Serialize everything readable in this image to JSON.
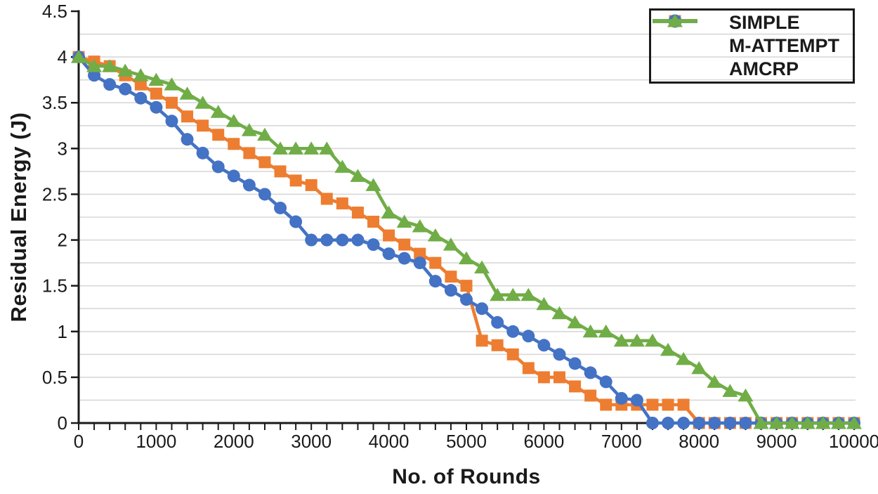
{
  "chart_data": {
    "type": "line",
    "title": "",
    "xlabel": "No. of Rounds",
    "ylabel": "Residual Energy (J)",
    "xlim": [
      0,
      10000
    ],
    "ylim": [
      0,
      4.5
    ],
    "x_major_tick_step": 1000,
    "x_minor_tick_step": 200,
    "y_major_tick_step": 0.5,
    "y_gridline_step": 0.25,
    "grid": "horizontal",
    "legend_position": "top-right",
    "x_tick_labels": [
      "0",
      "1000",
      "2000",
      "3000",
      "4000",
      "5000",
      "6000",
      "7000",
      "8000",
      "9000",
      "10000"
    ],
    "y_tick_labels": [
      "0",
      "0.5",
      "1",
      "1.5",
      "2",
      "2.5",
      "3",
      "3.5",
      "4",
      "4.5"
    ],
    "axis_color": "#1a1a1a",
    "gridline_color": "#d8d8d8",
    "text_color": "#1a1a1a",
    "x": [
      0,
      200,
      400,
      600,
      800,
      1000,
      1200,
      1400,
      1600,
      1800,
      2000,
      2200,
      2400,
      2600,
      2800,
      3000,
      3200,
      3400,
      3600,
      3800,
      4000,
      4200,
      4400,
      4600,
      4800,
      5000,
      5200,
      5400,
      5600,
      5800,
      6000,
      6200,
      6400,
      6600,
      6800,
      7000,
      7200,
      7400,
      7600,
      7800,
      8000,
      8200,
      8400,
      8600,
      8800,
      9000,
      9200,
      9400,
      9600,
      9800,
      10000
    ],
    "series": [
      {
        "name": "SIMPLE",
        "color": "#ED7D31",
        "marker": "square",
        "values": [
          4,
          3.95,
          3.9,
          3.8,
          3.7,
          3.6,
          3.5,
          3.35,
          3.25,
          3.15,
          3.05,
          2.95,
          2.85,
          2.75,
          2.65,
          2.6,
          2.45,
          2.4,
          2.3,
          2.2,
          2.05,
          1.95,
          1.85,
          1.75,
          1.6,
          1.5,
          0.9,
          0.85,
          0.75,
          0.6,
          0.5,
          0.5,
          0.4,
          0.3,
          0.2,
          0.2,
          0.2,
          0.2,
          0.2,
          0.2,
          0,
          0,
          0,
          0,
          0,
          0,
          0,
          0,
          0,
          0,
          0
        ]
      },
      {
        "name": "M-ATTEMPT",
        "color": "#4472C4",
        "marker": "circle",
        "values": [
          4,
          3.8,
          3.7,
          3.65,
          3.55,
          3.45,
          3.3,
          3.1,
          2.95,
          2.8,
          2.7,
          2.6,
          2.5,
          2.35,
          2.2,
          2,
          2,
          2,
          2,
          1.95,
          1.85,
          1.8,
          1.75,
          1.55,
          1.45,
          1.35,
          1.25,
          1.1,
          1,
          0.95,
          0.85,
          0.75,
          0.65,
          0.55,
          0.45,
          0.27,
          0.25,
          0,
          0,
          0,
          0,
          0,
          0,
          0,
          0,
          0,
          0,
          0,
          0,
          0,
          0
        ]
      },
      {
        "name": "AMCRP",
        "color": "#70AD47",
        "marker": "triangle",
        "values": [
          4,
          3.9,
          3.9,
          3.85,
          3.8,
          3.75,
          3.7,
          3.6,
          3.5,
          3.4,
          3.3,
          3.2,
          3.15,
          3,
          3,
          3,
          3,
          2.8,
          2.7,
          2.6,
          2.3,
          2.2,
          2.15,
          2.05,
          1.95,
          1.8,
          1.7,
          1.4,
          1.4,
          1.4,
          1.3,
          1.2,
          1.1,
          1,
          1,
          0.9,
          0.9,
          0.9,
          0.8,
          0.7,
          0.6,
          0.45,
          0.35,
          0.3,
          0,
          0,
          0,
          0,
          0,
          0,
          0
        ]
      }
    ]
  }
}
